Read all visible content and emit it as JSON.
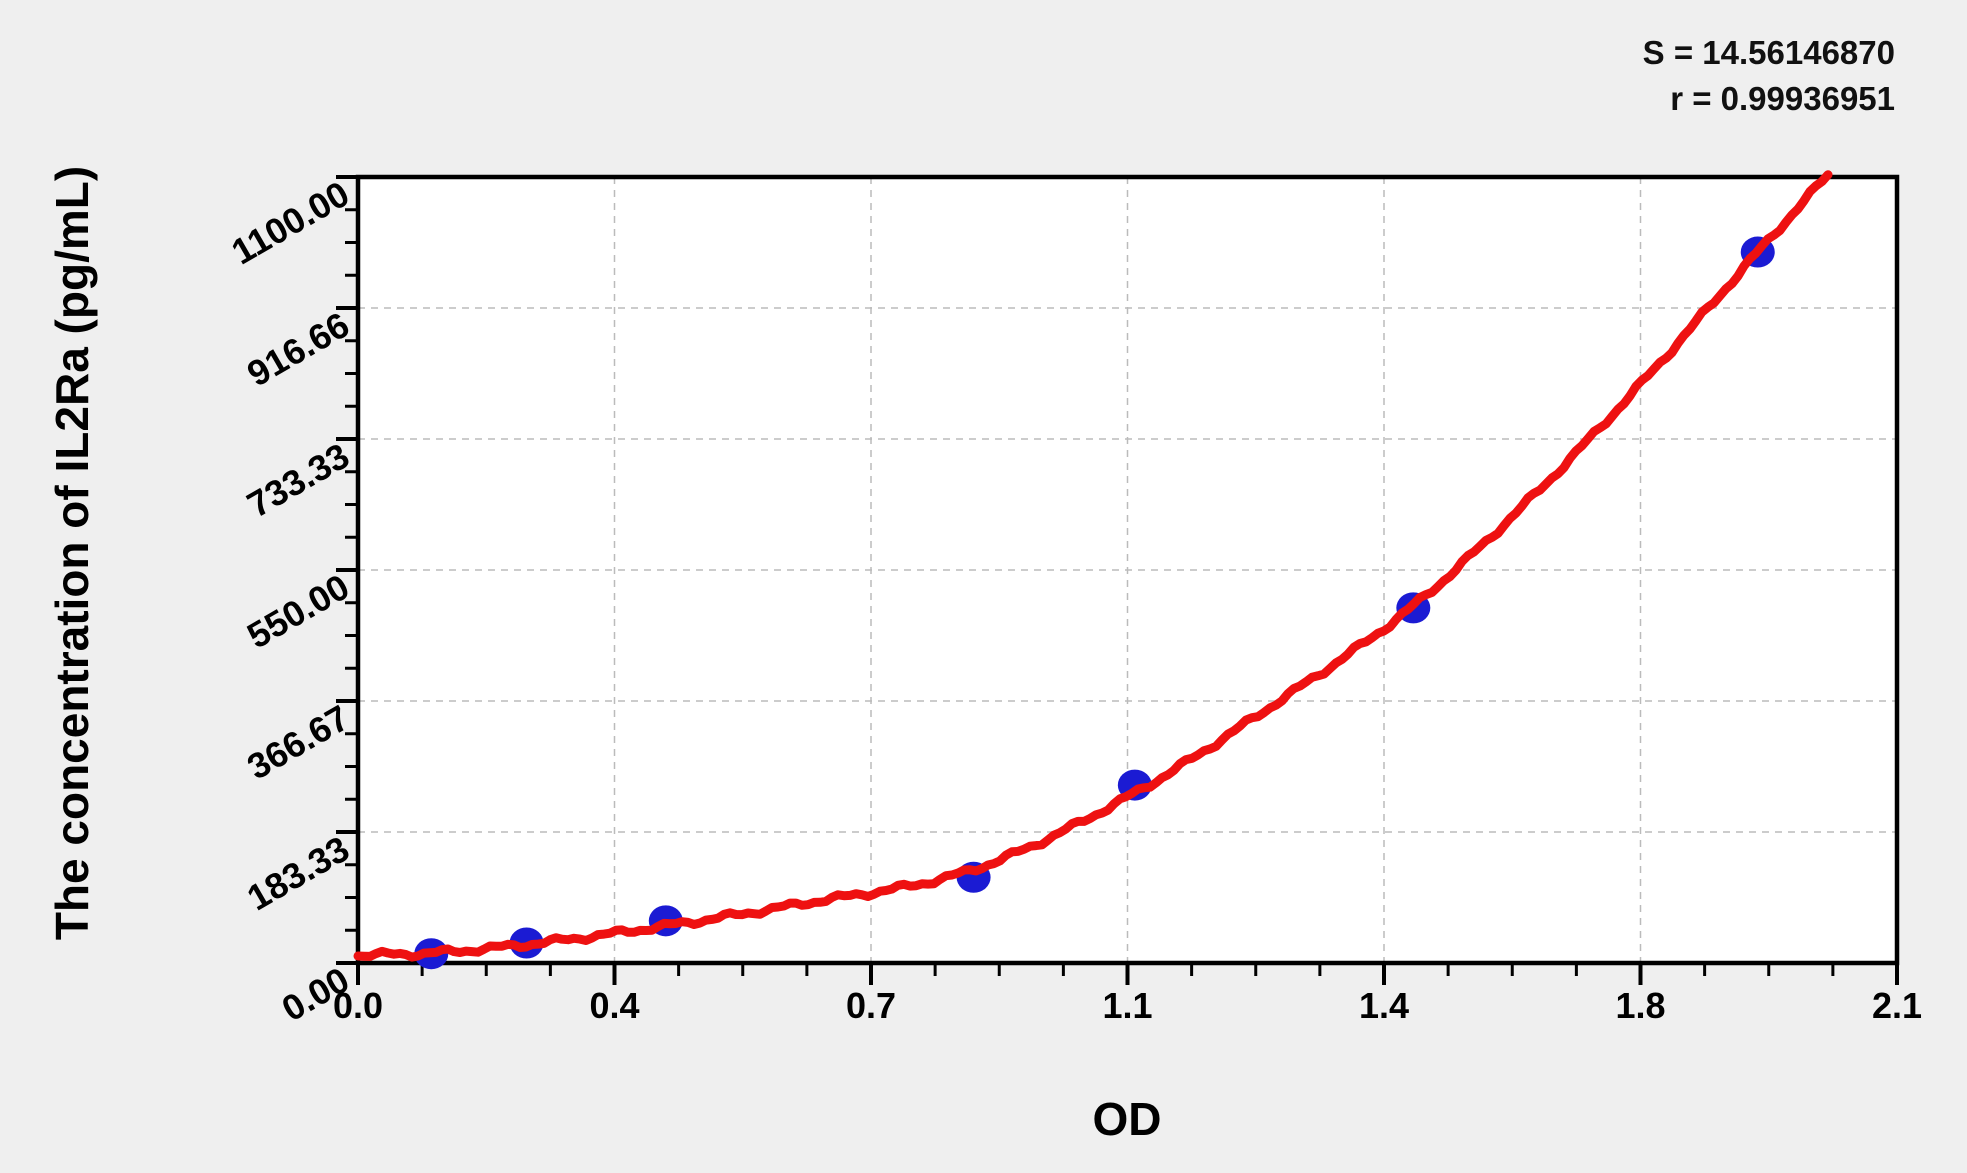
{
  "annotations": {
    "s_line": "S = 14.56146870",
    "r_line": "r = 0.99936951"
  },
  "chart_data": {
    "type": "scatter",
    "title": "",
    "xlabel": "OD",
    "ylabel": "The concentration of IL2Ra (pg/mL)",
    "x_axis": {
      "min": 0.0,
      "max": 2.1,
      "tick_labels": [
        "0.0",
        "0.4",
        "0.7",
        "1.1",
        "1.4",
        "1.8",
        "2.1"
      ],
      "tick_values": [
        0,
        0.35,
        0.7,
        1.05,
        1.4,
        1.75,
        2.1
      ],
      "minor_ticks_between_majors": 3
    },
    "y_axis": {
      "min": 0,
      "max": 1100,
      "tick_labels": [
        "0.00",
        "183.33",
        "366.67",
        "550.00",
        "733.33",
        "916.66",
        "1100.00"
      ],
      "tick_values": [
        0,
        183.33,
        366.67,
        550.0,
        733.33,
        916.66,
        1100.0
      ],
      "minor_ticks_between_majors": 3
    },
    "grid": "major-dashed",
    "legend": "none",
    "series": [
      {
        "name": "standard-points",
        "type": "scatter",
        "color": "#1b1bd3",
        "points": [
          [
            0.1,
            13
          ],
          [
            0.23,
            28
          ],
          [
            0.42,
            59
          ],
          [
            0.84,
            120
          ],
          [
            1.06,
            249
          ],
          [
            1.44,
            497
          ],
          [
            1.91,
            995
          ]
        ]
      },
      {
        "name": "fitted-curve",
        "type": "line",
        "color": "#ee1111",
        "points": [
          [
            0.0,
            11
          ],
          [
            0.1,
            14
          ],
          [
            0.23,
            26
          ],
          [
            0.42,
            52
          ],
          [
            0.6,
            82
          ],
          [
            0.84,
            131
          ],
          [
            1.06,
            238
          ],
          [
            1.25,
            362
          ],
          [
            1.44,
            500
          ],
          [
            1.6,
            650
          ],
          [
            1.75,
            810
          ],
          [
            1.91,
            995
          ],
          [
            2.013,
            1111
          ]
        ]
      }
    ],
    "fit_stats": {
      "S": "14.56146870",
      "r": "0.99936951"
    }
  },
  "colors": {
    "background": "#efefef",
    "plot_background": "#ffffff",
    "axis": "#000000",
    "grid": "#bbbbbb",
    "point": "#1b1bd3",
    "curve": "#ee1111",
    "text": "#111111"
  }
}
